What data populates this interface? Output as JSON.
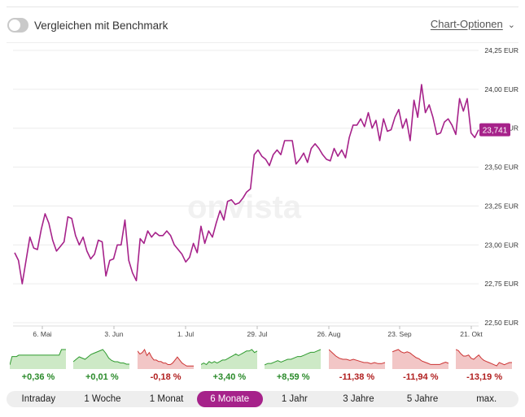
{
  "benchmark": {
    "label": "Vergleichen mit Benchmark",
    "enabled": false
  },
  "chart_options": {
    "label": "Chart-Optionen",
    "icon": "chevron-down-icon"
  },
  "watermark": "onvista",
  "chart_data": {
    "type": "line",
    "ylim": [
      22.5,
      24.25
    ],
    "y_ticks": [
      22.5,
      22.75,
      23.0,
      23.25,
      23.5,
      23.75,
      24.0,
      24.25
    ],
    "y_tick_labels": [
      "22,50 EUR",
      "22,75 EUR",
      "23,00 EUR",
      "23,25 EUR",
      "23,50 EUR",
      "23,75 EUR",
      "24,00 EUR",
      "24,25 EUR"
    ],
    "x_ticks": [
      "6. Mai",
      "3. Jun",
      "1. Jul",
      "29. Jul",
      "26. Aug",
      "23. Sep",
      "21. Okt"
    ],
    "current_value_label": "23,741",
    "line_color": "#a6228a",
    "values": [
      22.95,
      22.9,
      22.75,
      22.9,
      23.05,
      22.98,
      22.97,
      23.1,
      23.2,
      23.14,
      23.03,
      22.96,
      22.99,
      23.02,
      23.18,
      23.17,
      23.06,
      23.0,
      23.05,
      22.96,
      22.91,
      22.94,
      23.03,
      23.02,
      22.8,
      22.9,
      22.91,
      23.0,
      23.0,
      23.16,
      22.9,
      22.82,
      22.77,
      23.04,
      23.01,
      23.09,
      23.05,
      23.08,
      23.06,
      23.06,
      23.09,
      23.06,
      23.0,
      22.97,
      22.94,
      22.89,
      22.92,
      23.01,
      22.95,
      23.12,
      23.01,
      23.09,
      23.05,
      23.14,
      23.22,
      23.16,
      23.28,
      23.29,
      23.26,
      23.27,
      23.3,
      23.34,
      23.36,
      23.58,
      23.61,
      23.57,
      23.55,
      23.51,
      23.58,
      23.61,
      23.58,
      23.67,
      23.67,
      23.67,
      23.52,
      23.55,
      23.59,
      23.53,
      23.62,
      23.65,
      23.62,
      23.58,
      23.55,
      23.54,
      23.62,
      23.57,
      23.61,
      23.56,
      23.69,
      23.77,
      23.77,
      23.81,
      23.76,
      23.85,
      23.75,
      23.8,
      23.67,
      23.81,
      23.73,
      23.74,
      23.82,
      23.87,
      23.75,
      23.81,
      23.67,
      23.93,
      23.82,
      24.03,
      23.85,
      23.9,
      23.82,
      23.71,
      23.72,
      23.79,
      23.81,
      23.77,
      23.71,
      23.94,
      23.86,
      23.94,
      23.72,
      23.69,
      23.74
    ]
  },
  "sparklines": [
    {
      "label": "+0,36 %",
      "trend": "up",
      "color": "#2e9a2e",
      "fill": "#cde9c6",
      "values": [
        3,
        9,
        9,
        9,
        10,
        10,
        10,
        10,
        10,
        10,
        10,
        10,
        10,
        10,
        10,
        10,
        10,
        10,
        10,
        10,
        10,
        10,
        10,
        14,
        14,
        14
      ]
    },
    {
      "label": "+0,01 %",
      "trend": "up",
      "color": "#2e9a2e",
      "fill": "#cde9c6",
      "values": [
        6,
        8,
        10,
        9,
        8,
        10,
        12,
        13,
        14,
        15,
        16,
        13,
        9,
        7,
        6,
        6,
        5,
        5,
        4,
        4
      ]
    },
    {
      "label": "-0,18 %",
      "trend": "down",
      "color": "#cc3333",
      "fill": "#f2c6c6",
      "values": [
        12,
        10,
        11,
        13,
        9,
        11,
        8,
        6,
        6,
        5,
        5,
        4,
        4,
        3,
        3,
        4,
        6,
        8,
        6,
        4,
        3,
        2,
        2,
        2,
        2
      ]
    },
    {
      "label": "+3,40 %",
      "trend": "up",
      "color": "#2e9a2e",
      "fill": "#cde9c6",
      "values": [
        3,
        4,
        3,
        5,
        4,
        5,
        4,
        5,
        6,
        6,
        7,
        8,
        9,
        10,
        9,
        10,
        11,
        12,
        12,
        13,
        11,
        12
      ]
    },
    {
      "label": "+8,59 %",
      "trend": "up",
      "color": "#2e9a2e",
      "fill": "#cde9c6",
      "values": [
        3,
        4,
        4,
        5,
        6,
        5,
        6,
        7,
        7,
        8,
        9,
        9,
        10,
        11,
        12,
        12,
        13,
        14
      ]
    },
    {
      "label": "-11,38 %",
      "trend": "down",
      "color": "#cc3333",
      "fill": "#f2c6c6",
      "values": [
        18,
        15,
        12,
        10,
        9,
        9,
        8,
        9,
        8,
        7,
        6,
        6,
        5,
        6,
        5,
        5,
        6
      ]
    },
    {
      "label": "-11,94 %",
      "trend": "down",
      "color": "#cc3333",
      "fill": "#f2c6c6",
      "values": [
        15,
        16,
        17,
        15,
        14,
        15,
        14,
        12,
        10,
        9,
        7,
        6,
        5,
        4,
        4,
        4,
        4,
        5,
        6,
        5
      ]
    },
    {
      "label": "-13,19 %",
      "trend": "down",
      "color": "#cc3333",
      "fill": "#f2c6c6",
      "values": [
        18,
        17,
        14,
        12,
        12,
        13,
        10,
        9,
        11,
        13,
        10,
        8,
        7,
        6,
        5,
        4,
        3,
        6,
        5,
        4,
        5,
        6,
        6
      ]
    }
  ],
  "ranges": [
    {
      "label": "Intraday",
      "active": false
    },
    {
      "label": "1 Woche",
      "active": false
    },
    {
      "label": "1 Monat",
      "active": false
    },
    {
      "label": "6 Monate",
      "active": true
    },
    {
      "label": "1 Jahr",
      "active": false
    },
    {
      "label": "3 Jahre",
      "active": false
    },
    {
      "label": "5 Jahre",
      "active": false
    },
    {
      "label": "max.",
      "active": false
    }
  ]
}
